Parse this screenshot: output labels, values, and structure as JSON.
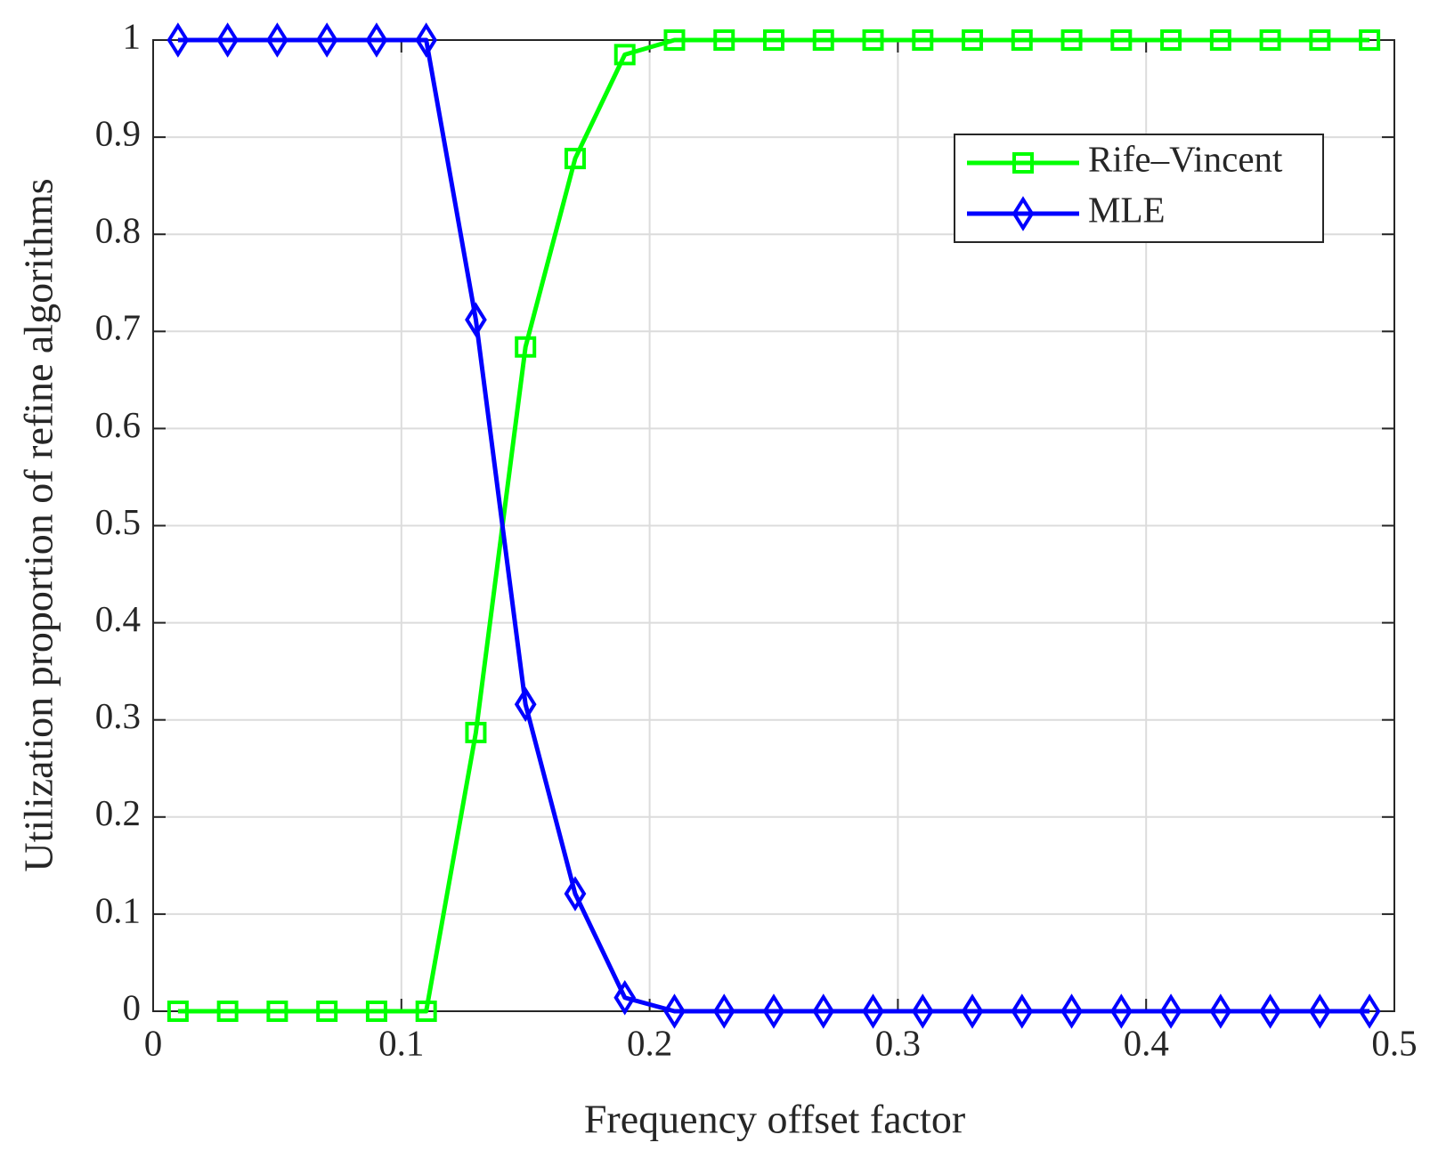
{
  "chart_data": {
    "type": "line",
    "x_label": "Frequency offset factor",
    "y_label": "Utilization proportion of refine algorithms",
    "x": [
      0.01,
      0.03,
      0.05,
      0.07,
      0.09,
      0.11,
      0.13,
      0.15,
      0.17,
      0.19,
      0.21,
      0.23,
      0.25,
      0.27,
      0.29,
      0.31,
      0.33,
      0.35,
      0.37,
      0.39,
      0.41,
      0.43,
      0.45,
      0.47,
      0.49
    ],
    "series": [
      {
        "name": "Rife–Vincent",
        "color": "#00ff00",
        "marker": "square",
        "values": [
          0,
          0,
          0,
          0,
          0,
          0,
          0.287,
          0.684,
          0.878,
          0.985,
          1,
          1,
          1,
          1,
          1,
          1,
          1,
          1,
          1,
          1,
          1,
          1,
          1,
          1,
          1
        ]
      },
      {
        "name": "MLE",
        "color": "#0000ff",
        "marker": "diamond",
        "values": [
          1,
          1,
          1,
          1,
          1,
          1,
          0.712,
          0.316,
          0.121,
          0.014,
          0,
          0,
          0,
          0,
          0,
          0,
          0,
          0,
          0,
          0,
          0,
          0,
          0,
          0,
          0
        ]
      }
    ],
    "xlim": [
      0,
      0.5
    ],
    "ylim": [
      0,
      1
    ],
    "xticks": [
      0,
      0.1,
      0.2,
      0.3,
      0.4,
      0.5
    ],
    "yticks": [
      0,
      0.1,
      0.2,
      0.3,
      0.4,
      0.5,
      0.6,
      0.7,
      0.8,
      0.9,
      1
    ],
    "grid": true,
    "legend": "northeast"
  }
}
